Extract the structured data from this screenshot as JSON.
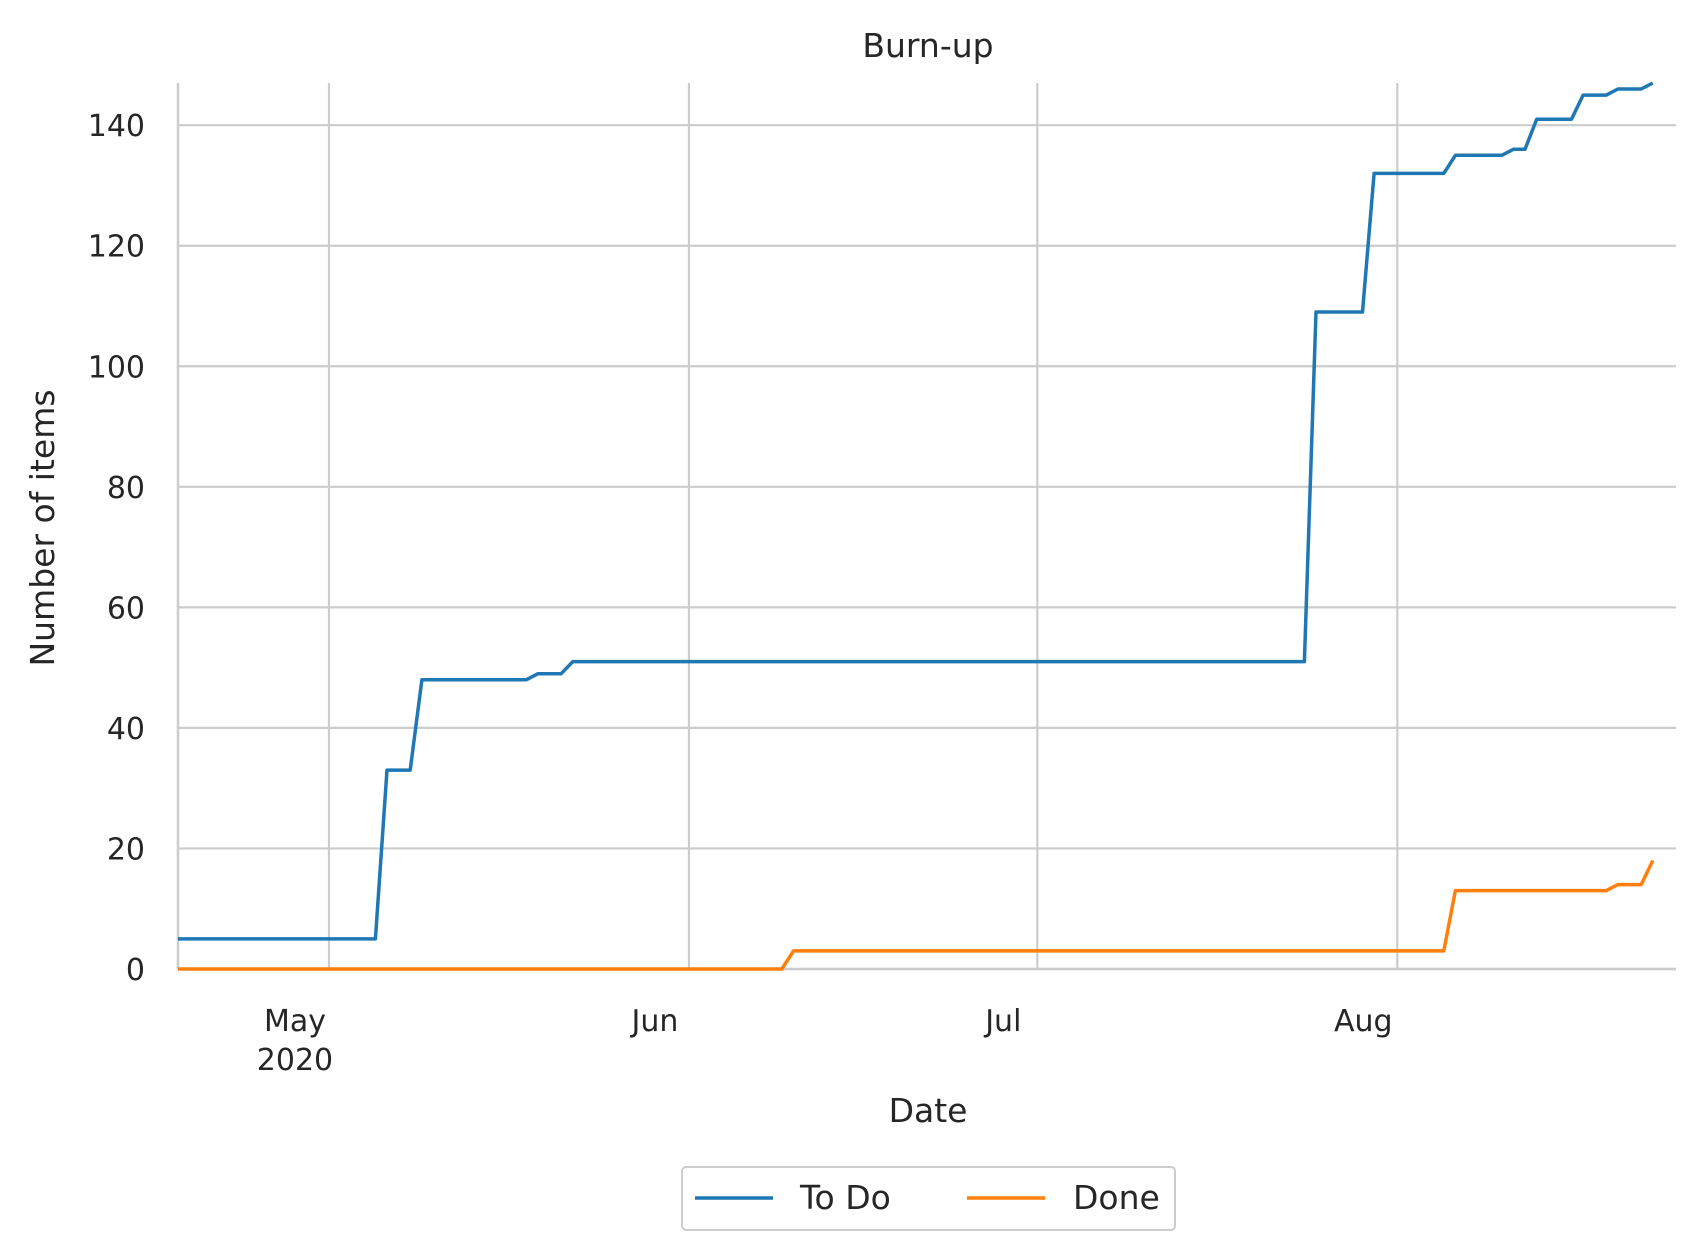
{
  "chart_data": {
    "type": "line",
    "title": "Burn-up",
    "xlabel": "Date",
    "ylabel": "Number of items",
    "xlim": [
      "2020-04-18",
      "2020-08-25"
    ],
    "ylim": [
      0,
      147
    ],
    "yticks": [
      0,
      20,
      40,
      60,
      80,
      100,
      120,
      140
    ],
    "xticks": [
      {
        "date": "2020-05-01",
        "label": "May",
        "sublabel": "2020"
      },
      {
        "date": "2020-06-01",
        "label": "Jun",
        "sublabel": ""
      },
      {
        "date": "2020-07-01",
        "label": "Jul",
        "sublabel": ""
      },
      {
        "date": "2020-08-01",
        "label": "Aug",
        "sublabel": ""
      }
    ],
    "grid": true,
    "legend": "bottom-center",
    "series": [
      {
        "name": "To Do",
        "color": "#1f77b4",
        "points": [
          [
            "2020-04-18",
            5
          ],
          [
            "2020-05-05",
            5
          ],
          [
            "2020-05-06",
            33
          ],
          [
            "2020-05-08",
            33
          ],
          [
            "2020-05-09",
            48
          ],
          [
            "2020-05-18",
            48
          ],
          [
            "2020-05-19",
            49
          ],
          [
            "2020-05-21",
            49
          ],
          [
            "2020-05-22",
            51
          ],
          [
            "2020-07-24",
            51
          ],
          [
            "2020-07-25",
            109
          ],
          [
            "2020-07-29",
            109
          ],
          [
            "2020-07-30",
            132
          ],
          [
            "2020-08-05",
            132
          ],
          [
            "2020-08-06",
            135
          ],
          [
            "2020-08-10",
            135
          ],
          [
            "2020-08-11",
            136
          ],
          [
            "2020-08-12",
            136
          ],
          [
            "2020-08-13",
            141
          ],
          [
            "2020-08-16",
            141
          ],
          [
            "2020-08-17",
            145
          ],
          [
            "2020-08-19",
            145
          ],
          [
            "2020-08-20",
            146
          ],
          [
            "2020-08-22",
            146
          ],
          [
            "2020-08-23",
            147
          ]
        ]
      },
      {
        "name": "Done",
        "color": "#ff7f0e",
        "points": [
          [
            "2020-04-18",
            0
          ],
          [
            "2020-06-09",
            0
          ],
          [
            "2020-06-10",
            3
          ],
          [
            "2020-08-05",
            3
          ],
          [
            "2020-08-06",
            13
          ],
          [
            "2020-08-19",
            13
          ],
          [
            "2020-08-20",
            14
          ],
          [
            "2020-08-22",
            14
          ],
          [
            "2020-08-23",
            18
          ]
        ]
      }
    ]
  }
}
